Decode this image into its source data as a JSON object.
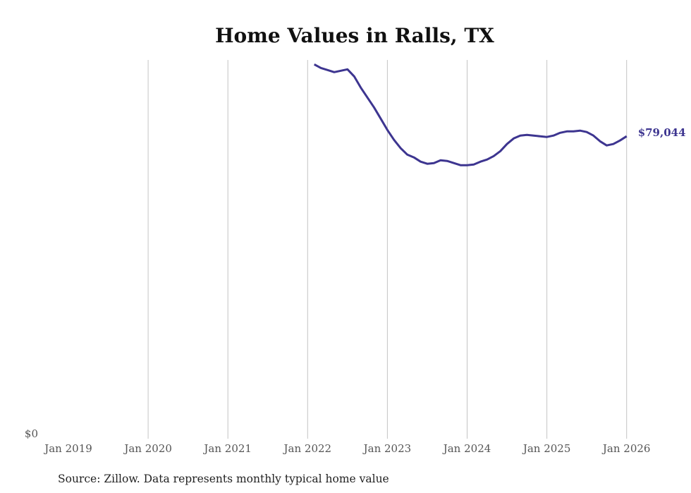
{
  "chart_data": {
    "type": "line",
    "title": "Home Values in Ralls, TX",
    "xlabel": "",
    "ylabel": "",
    "x_tick_labels": [
      "Jan 2019",
      "Jan 2020",
      "Jan 2021",
      "Jan 2022",
      "Jan 2023",
      "Jan 2024",
      "Jan 2025",
      "Jan 2026"
    ],
    "y_tick_labels": [
      "$0"
    ],
    "ylim": [
      0,
      99000
    ],
    "xlim": [
      "2019-01",
      "2026-01"
    ],
    "grid": "vertical",
    "line_color": "#3d3590",
    "end_label": "$79,044",
    "source": "Source: Zillow. Data represents monthly typical home value",
    "series": [
      {
        "name": "Typical home value",
        "start": "2022-02",
        "values": [
          97840,
          96900,
          96360,
          95810,
          96180,
          96550,
          94700,
          91760,
          89180,
          86600,
          83650,
          80700,
          78120,
          75910,
          74250,
          73520,
          72410,
          71860,
          72040,
          72780,
          72600,
          72040,
          71490,
          71490,
          71670,
          72410,
          72960,
          73880,
          75170,
          77020,
          78490,
          79230,
          79410,
          79230,
          79040,
          78860,
          79230,
          79960,
          80330,
          80330,
          80520,
          80150,
          79230,
          77750,
          76650,
          77020,
          77940,
          79044
        ]
      }
    ]
  }
}
